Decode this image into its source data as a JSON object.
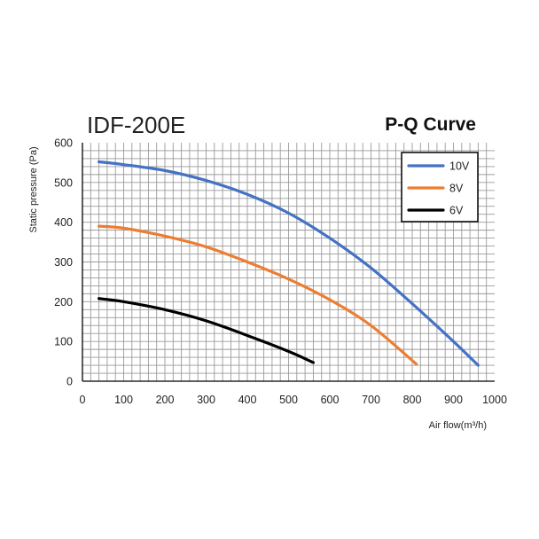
{
  "chart_data": {
    "type": "line",
    "model_label": "IDF-200E",
    "title": "P-Q Curve",
    "xlabel": "Air flow(m³/h)",
    "ylabel": "Static pressure (Pa)",
    "xlim": [
      0,
      1000
    ],
    "ylim": [
      0,
      600
    ],
    "xticks": [
      "0",
      "100",
      "200",
      "300",
      "400",
      "500",
      "600",
      "700",
      "800",
      "900",
      "1000"
    ],
    "yticks": [
      "0",
      "100",
      "200",
      "300",
      "400",
      "500",
      "600"
    ],
    "grid": true,
    "legend_position": "top-right",
    "series": [
      {
        "name": "10V",
        "color": "#4472c4",
        "x": [
          40,
          100,
          200,
          300,
          400,
          500,
          600,
          700,
          800,
          900,
          960
        ],
        "y": [
          552,
          545,
          530,
          505,
          470,
          423,
          360,
          285,
          195,
          100,
          40
        ]
      },
      {
        "name": "8V",
        "color": "#ed7d31",
        "x": [
          40,
          100,
          200,
          300,
          400,
          500,
          600,
          700,
          810
        ],
        "y": [
          390,
          385,
          365,
          338,
          300,
          257,
          205,
          140,
          43
        ]
      },
      {
        "name": "6V",
        "color": "#000000",
        "x": [
          40,
          100,
          200,
          300,
          400,
          500,
          560
        ],
        "y": [
          208,
          200,
          180,
          152,
          115,
          75,
          47
        ]
      }
    ]
  }
}
